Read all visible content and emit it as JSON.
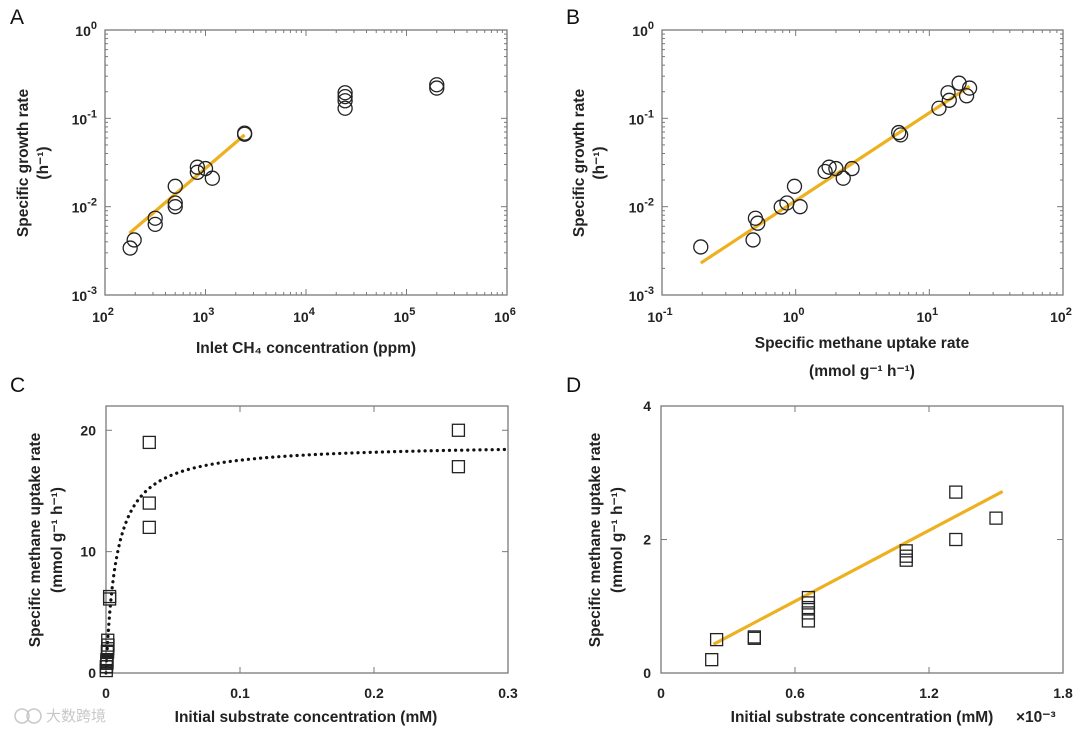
{
  "watermark": "大数跨境",
  "colors": {
    "fit": "#EDB120",
    "axis": "#7a7a7a",
    "marker": "#222222"
  },
  "chart_data": [
    {
      "panel": "A",
      "type": "scatter",
      "xscale": "log",
      "yscale": "log",
      "xlim": [
        100,
        1000000
      ],
      "ylim": [
        0.001,
        1
      ],
      "xtick_exponents": [
        2,
        3,
        4,
        5,
        6
      ],
      "ytick_exponents": [
        -3,
        -2,
        -1,
        0
      ],
      "xlabel": [
        "Inlet CH₄ concentration (ppm)"
      ],
      "ylabel": [
        "Specific growth rate",
        "(h⁻¹)"
      ],
      "marker": "circle",
      "points": [
        [
          178,
          0.0034
        ],
        [
          195,
          0.0042
        ],
        [
          316,
          0.0074
        ],
        [
          316,
          0.0063
        ],
        [
          500,
          0.017
        ],
        [
          500,
          0.011
        ],
        [
          500,
          0.01
        ],
        [
          830,
          0.028
        ],
        [
          830,
          0.0245
        ],
        [
          1000,
          0.027
        ],
        [
          1170,
          0.021
        ],
        [
          2450,
          0.068
        ],
        [
          2450,
          0.066
        ],
        [
          24500,
          0.195
        ],
        [
          24500,
          0.176
        ],
        [
          24500,
          0.158
        ],
        [
          24500,
          0.13
        ],
        [
          200000,
          0.24
        ],
        [
          200000,
          0.22
        ]
      ],
      "fit": {
        "style": "solid",
        "x": [
          175,
          2450
        ],
        "y": [
          0.005,
          0.065
        ]
      }
    },
    {
      "panel": "B",
      "type": "scatter",
      "xscale": "log",
      "yscale": "log",
      "xlim": [
        0.1,
        100
      ],
      "ylim": [
        0.001,
        1
      ],
      "xtick_exponents": [
        -1,
        0,
        1,
        2
      ],
      "ytick_exponents": [
        -3,
        -2,
        -1,
        0
      ],
      "xlabel": [
        "Specific methane uptake rate",
        "(mmol g⁻¹ h⁻¹)"
      ],
      "ylabel": [
        "Specific growth rate",
        "(h⁻¹)"
      ],
      "marker": "circle",
      "points": [
        [
          0.195,
          0.0035
        ],
        [
          0.48,
          0.0042
        ],
        [
          0.5,
          0.0074
        ],
        [
          0.52,
          0.0065
        ],
        [
          0.78,
          0.0099
        ],
        [
          0.86,
          0.011
        ],
        [
          0.98,
          0.017
        ],
        [
          1.08,
          0.01
        ],
        [
          1.66,
          0.025
        ],
        [
          1.78,
          0.028
        ],
        [
          2.0,
          0.027
        ],
        [
          2.27,
          0.021
        ],
        [
          2.64,
          0.027
        ],
        [
          5.9,
          0.069
        ],
        [
          6.1,
          0.065
        ],
        [
          11.8,
          0.13
        ],
        [
          13.8,
          0.195
        ],
        [
          14.1,
          0.16
        ],
        [
          16.7,
          0.25
        ],
        [
          19,
          0.18
        ],
        [
          20,
          0.22
        ]
      ],
      "fit": {
        "style": "solid",
        "x": [
          0.195,
          20
        ],
        "y": [
          0.0023,
          0.23
        ]
      }
    },
    {
      "panel": "C",
      "type": "scatter",
      "xscale": "linear",
      "yscale": "linear",
      "xlim": [
        0,
        0.3
      ],
      "ylim": [
        0,
        22
      ],
      "xticks": [
        "0",
        "0.1",
        "0.2",
        "0.3"
      ],
      "xtick_values": [
        0,
        0.1,
        0.2,
        0.3
      ],
      "yticks": [
        "0",
        "10",
        "20"
      ],
      "ytick_values": [
        0,
        10,
        20
      ],
      "xlabel": [
        "Initial substrate concentration (mM)"
      ],
      "ylabel": [
        "Specific methane uptake rate",
        "(mmol g⁻¹ h⁻¹)"
      ],
      "marker": "square",
      "points": [
        [
          0.0323,
          19
        ],
        [
          0.0323,
          14
        ],
        [
          0.0323,
          12
        ],
        [
          0.263,
          20
        ],
        [
          0.263,
          17
        ],
        [
          0.0027,
          6.1
        ],
        [
          0.0027,
          6.3
        ],
        [
          0.0002,
          0.2
        ],
        [
          0.00025,
          0.5
        ],
        [
          0.0004,
          0.53
        ],
        [
          0.0007,
          0.8
        ],
        [
          0.0007,
          0.9
        ],
        [
          0.0007,
          1.0
        ],
        [
          0.0007,
          1.1
        ],
        [
          0.0011,
          1.7
        ],
        [
          0.0011,
          1.8
        ],
        [
          0.0013,
          2.0
        ],
        [
          0.0013,
          2.7
        ],
        [
          0.0015,
          2.3
        ]
      ],
      "fit": {
        "style": "dotted",
        "model": "michaelis-menten",
        "vmax": 18.9,
        "km": 0.0078,
        "x": [
          0,
          0.3
        ]
      }
    },
    {
      "panel": "D",
      "type": "scatter",
      "xscale": "linear",
      "yscale": "linear",
      "xlim": [
        0,
        1.8
      ],
      "ylim": [
        0,
        4
      ],
      "xticks": [
        "0",
        "0.6",
        "1.2",
        "1.8"
      ],
      "xtick_values": [
        0,
        0.6,
        1.2,
        1.8
      ],
      "yticks": [
        "0",
        "2",
        "4"
      ],
      "ytick_values": [
        0,
        2,
        4
      ],
      "xlabel": [
        "Initial substrate concentration (mM)"
      ],
      "x_multiplier": "×10⁻³",
      "ylabel": [
        "Specific methane uptake rate",
        "(mmol g⁻¹ h⁻¹)"
      ],
      "marker": "square",
      "points": [
        [
          0.227,
          0.2
        ],
        [
          0.249,
          0.5
        ],
        [
          0.418,
          0.54
        ],
        [
          0.418,
          0.52
        ],
        [
          0.66,
          1.13
        ],
        [
          0.66,
          1.05
        ],
        [
          0.66,
          0.98
        ],
        [
          0.66,
          0.9
        ],
        [
          0.66,
          0.78
        ],
        [
          1.098,
          1.83
        ],
        [
          1.098,
          1.75
        ],
        [
          1.098,
          1.69
        ],
        [
          1.32,
          2.71
        ],
        [
          1.32,
          2.0
        ],
        [
          1.5,
          2.32
        ]
      ],
      "fit": {
        "style": "solid",
        "x": [
          0.235,
          1.53
        ],
        "y": [
          0.43,
          2.72
        ]
      }
    }
  ]
}
